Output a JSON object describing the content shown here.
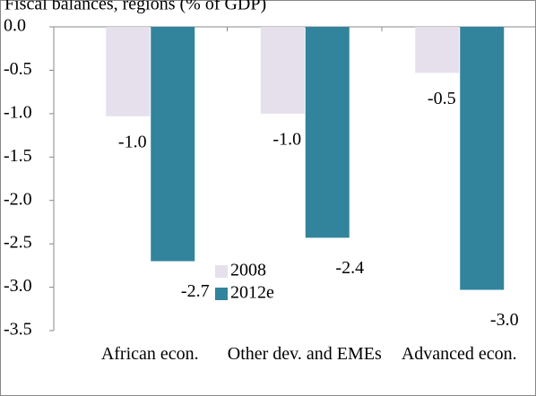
{
  "chart_data": {
    "type": "bar",
    "title": "Fiscal balances, regions (% of GDP)",
    "categories": [
      "African econ.",
      "Other dev. and EMEs",
      "Advanced econ."
    ],
    "series": [
      {
        "name": "2008",
        "color": "#e6e0ec",
        "values": [
          -1.03,
          -1.0,
          -0.53
        ],
        "value_labels": [
          "-1.0",
          "-1.0",
          "-0.5"
        ]
      },
      {
        "name": "2012e",
        "color": "#31849b",
        "values": [
          -2.7,
          -2.43,
          -3.03
        ],
        "value_labels": [
          "-2.7",
          "-2.4",
          "-3.0"
        ]
      }
    ],
    "ylim": [
      -3.5,
      0
    ],
    "yticks": [
      {
        "value": 0,
        "label": "0.0"
      },
      -0.5,
      {
        "value": -1,
        "label": "-1.0"
      },
      -1.5,
      {
        "value": -2,
        "label": "-2.0"
      },
      -2.5,
      {
        "value": -3,
        "label": "-3.0"
      },
      -3.5
    ],
    "legend": "center"
  }
}
